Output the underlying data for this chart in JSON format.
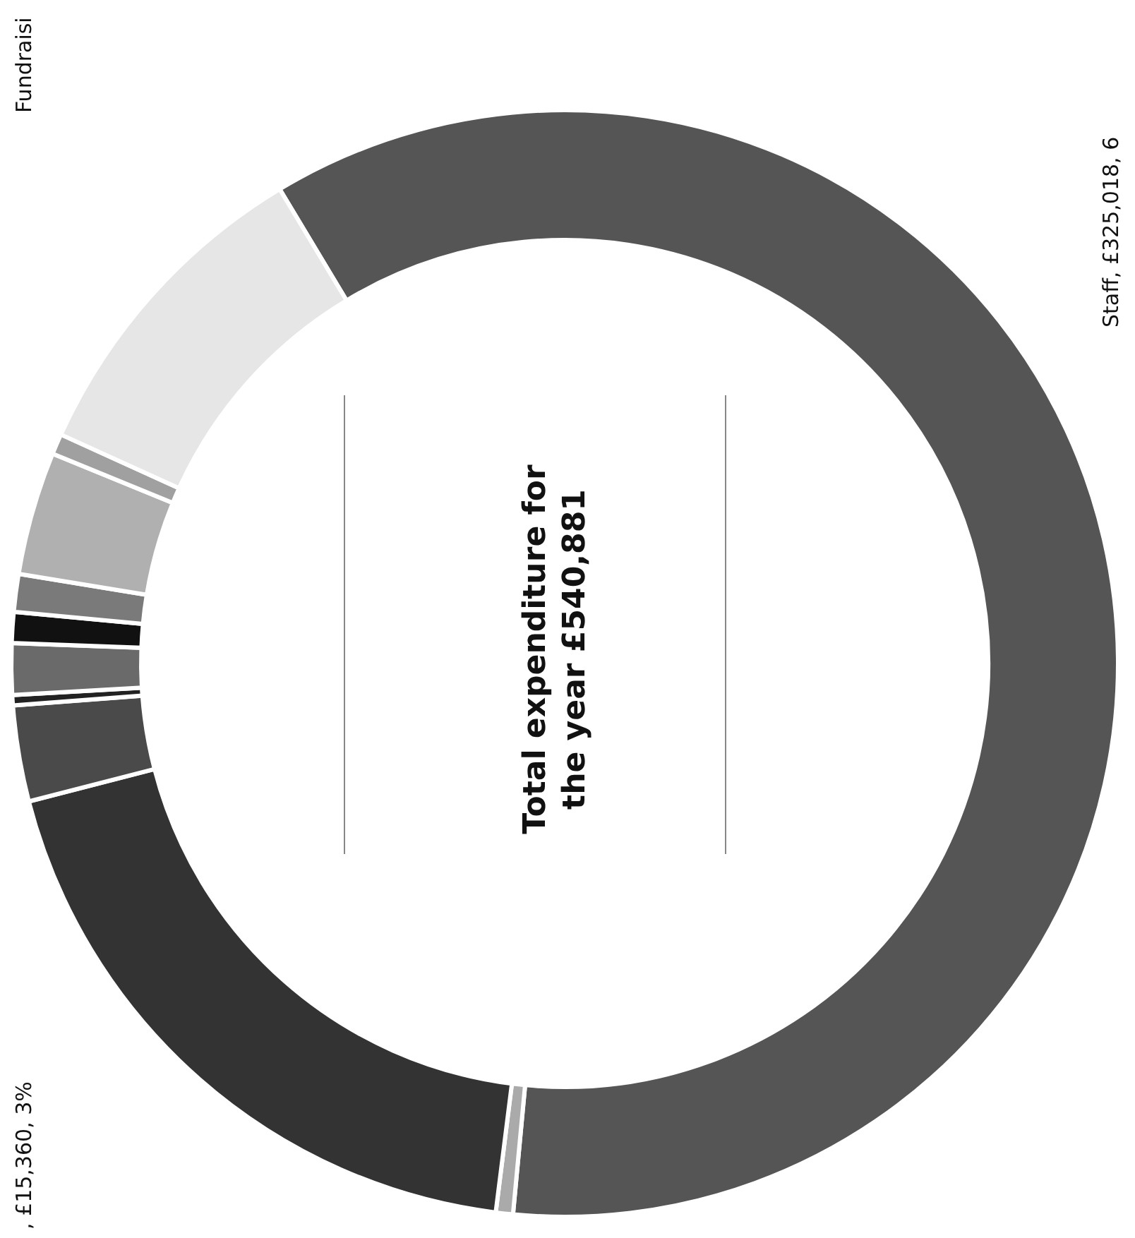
{
  "chart_data": {
    "type": "donut",
    "title": "Total expenditure for the year £540,881",
    "categories": [
      null,
      null,
      null,
      null,
      null,
      null,
      null,
      null,
      null,
      null,
      null
    ],
    "values": [
      60.1,
      0.5,
      19.0,
      2.8,
      0.3,
      1.5,
      0.9,
      1.1,
      3.6,
      0.6,
      9.6
    ],
    "colors": [
      "#555555",
      "#aaaaaa",
      "#333333",
      "#4a4a4a",
      "#222222",
      "#6a6a6a",
      "#111111",
      "#7a7a7a",
      "#b0b0b0",
      "#a0a0a0",
      "#e6e6e6"
    ],
    "annotations": [
      "Fundraisi",
      "Staff, £325,018, 6",
      ", £15,360, 3%"
    ],
    "legend": false
  }
}
